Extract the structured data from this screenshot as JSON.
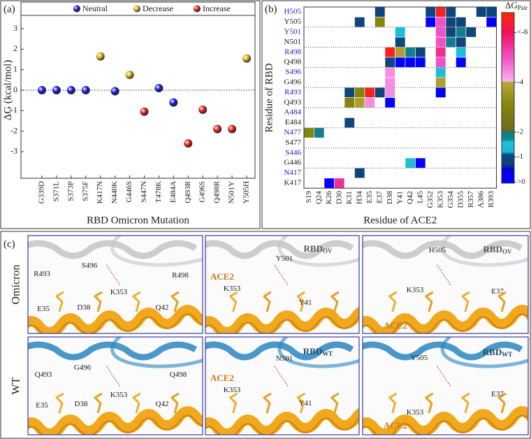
{
  "chart_data": [
    {
      "type": "scatter",
      "panel_label": "(a)",
      "ylabel": "ΔG (kcal/mol)",
      "xlabel": "RBD Omicron Mutation",
      "categories": [
        "G339D",
        "S371L",
        "S373P",
        "S375F",
        "K417N",
        "N440K",
        "G446S",
        "S447N",
        "T478K",
        "E484A",
        "Q493R",
        "G496S",
        "Q498R",
        "N501Y",
        "Y505H"
      ],
      "series": [
        {
          "name": "Neutral",
          "color": "#1c1cd6",
          "values": [
            0,
            0,
            0,
            0,
            null,
            -0.05,
            null,
            null,
            0.1,
            -0.6,
            null,
            null,
            null,
            null,
            null
          ]
        },
        {
          "name": "Decrease",
          "color": "#d6b21e",
          "values": [
            null,
            null,
            null,
            null,
            1.65,
            null,
            0.75,
            null,
            null,
            null,
            null,
            null,
            null,
            null,
            1.55
          ]
        },
        {
          "name": "Increase",
          "color": "#e3211c",
          "values": [
            null,
            null,
            null,
            null,
            null,
            null,
            null,
            -1.05,
            null,
            null,
            -2.6,
            -0.95,
            -1.9,
            -1.9,
            null
          ]
        }
      ],
      "ylim": [
        -4.3,
        4.3
      ],
      "yticks": [
        -3,
        -2,
        -1,
        0,
        1,
        2,
        3
      ],
      "zero_line": true
    },
    {
      "type": "heatmap",
      "panel_label": "(b)",
      "xlabel": "Residue of ACE2",
      "ylabel": "Residue of RBD",
      "columns": [
        "S19",
        "Q24",
        "K26",
        "D30",
        "K31",
        "H34",
        "E35",
        "E37",
        "D38",
        "Y41",
        "Q42",
        "L45",
        "G352",
        "K353",
        "G354",
        "D355",
        "R357",
        "A386",
        "R393"
      ],
      "rows": [
        "H505",
        "Y505",
        "Y501",
        "N501",
        "R498",
        "Q498",
        "S496",
        "G496",
        "R493",
        "Q493",
        "A484",
        "E484",
        "N477",
        "S477",
        "S446",
        "G446",
        "N417",
        "K417"
      ],
      "row_colors": [
        "#1a1acc",
        "#1a1a1a",
        "#1a1acc",
        "#1a1a1a",
        "#1a1acc",
        "#1a1a1a",
        "#1a1acc",
        "#1a1a1a",
        "#1a1acc",
        "#1a1a1a",
        "#1a1acc",
        "#1a1a1a",
        "#1a1acc",
        "#1a1a1a",
        "#1a1acc",
        "#1a1a1a",
        "#1a1acc",
        "#1a1a1a"
      ],
      "values": [
        [
          null,
          null,
          null,
          null,
          null,
          null,
          null,
          -0.9,
          null,
          null,
          null,
          null,
          -0.9,
          -6.5,
          -0.9,
          null,
          null,
          -0.9,
          -0.9
        ],
        [
          null,
          null,
          null,
          null,
          null,
          -0.9,
          null,
          -3,
          null,
          null,
          null,
          null,
          0.2,
          -5,
          -0.9,
          -0.9,
          null,
          null,
          0.2
        ],
        [
          null,
          null,
          null,
          null,
          null,
          null,
          null,
          null,
          null,
          -1.5,
          null,
          null,
          null,
          -5,
          -0.9,
          -1.9,
          -0.9,
          null,
          null
        ],
        [
          null,
          null,
          null,
          null,
          null,
          null,
          null,
          null,
          null,
          -0.9,
          null,
          null,
          null,
          -5,
          -1.9,
          -0.9,
          null,
          null,
          null
        ],
        [
          null,
          null,
          null,
          null,
          null,
          null,
          null,
          null,
          -6.5,
          -3.8,
          -1.9,
          -0.9,
          null,
          -5.5,
          null,
          -1.5,
          null,
          null,
          null
        ],
        [
          null,
          null,
          null,
          null,
          null,
          null,
          null,
          null,
          -0.9,
          0.2,
          0.2,
          0.2,
          null,
          -5,
          null,
          0.2,
          null,
          null,
          null
        ],
        [
          null,
          null,
          null,
          null,
          null,
          null,
          null,
          null,
          -4.4,
          null,
          null,
          null,
          null,
          -1.5,
          null,
          null,
          null,
          null,
          null
        ],
        [
          null,
          null,
          null,
          null,
          null,
          null,
          null,
          null,
          -4.4,
          null,
          null,
          null,
          null,
          -3.8,
          null,
          null,
          null,
          null,
          null
        ],
        [
          null,
          null,
          null,
          null,
          -0.9,
          -3,
          -6.5,
          -0.9,
          -4.4,
          null,
          null,
          null,
          null,
          0.2,
          null,
          null,
          null,
          null,
          null
        ],
        [
          null,
          null,
          null,
          null,
          -3,
          -3.8,
          -4.4,
          null,
          0.2,
          null,
          null,
          null,
          null,
          null,
          null,
          null,
          null,
          null,
          null
        ],
        [
          null,
          null,
          null,
          null,
          null,
          null,
          null,
          null,
          null,
          null,
          null,
          null,
          null,
          null,
          null,
          null,
          null,
          null,
          null
        ],
        [
          null,
          null,
          null,
          null,
          -0.9,
          null,
          null,
          null,
          null,
          null,
          null,
          null,
          null,
          null,
          null,
          null,
          null,
          null,
          null
        ],
        [
          -3,
          -1.9,
          null,
          null,
          null,
          null,
          null,
          null,
          null,
          null,
          null,
          null,
          null,
          null,
          null,
          null,
          null,
          null,
          null
        ],
        [
          null,
          null,
          null,
          null,
          null,
          null,
          null,
          null,
          null,
          null,
          null,
          null,
          null,
          null,
          null,
          null,
          null,
          null,
          null
        ],
        [
          null,
          null,
          null,
          null,
          null,
          null,
          null,
          null,
          null,
          null,
          null,
          null,
          null,
          null,
          null,
          null,
          null,
          null,
          null
        ],
        [
          null,
          null,
          null,
          null,
          null,
          null,
          null,
          null,
          null,
          null,
          -1.5,
          0.2,
          null,
          null,
          null,
          null,
          null,
          null,
          null
        ],
        [
          null,
          null,
          null,
          null,
          null,
          -0.9,
          null,
          null,
          null,
          null,
          null,
          null,
          null,
          null,
          null,
          null,
          null,
          null,
          null
        ],
        [
          null,
          null,
          0.2,
          -5.5,
          null,
          null,
          null,
          null,
          null,
          null,
          null,
          null,
          null,
          null,
          null,
          null,
          null,
          null,
          null
        ]
      ],
      "colorbar": {
        "title": "ΔG",
        "title_sub": "Pair",
        "zlim": [
          0.05,
          -6.8
        ],
        "ticks": [
          {
            "value": 0,
            "label": ">0"
          },
          -1,
          -2,
          -4,
          {
            "value": -6,
            "label": "<-6"
          }
        ],
        "colorscale": [
          {
            "value": 0.05,
            "color": "#0000ff"
          },
          {
            "value": -0.5,
            "color": "#0000dd"
          },
          {
            "value": -0.7,
            "color": "#0d3f78"
          },
          {
            "value": -1.1,
            "color": "#0d4a80"
          },
          {
            "value": -1.2,
            "color": "#19b5d5"
          },
          {
            "value": -1.6,
            "color": "#20c0d8"
          },
          {
            "value": -1.7,
            "color": "#0f8a9a"
          },
          {
            "value": -2.0,
            "color": "#127a86"
          },
          {
            "value": -2.05,
            "color": "#6a6a18"
          },
          {
            "value": -3.2,
            "color": "#8a8a10"
          },
          {
            "value": -4.0,
            "color": "#b8a838"
          },
          {
            "value": -4.05,
            "color": "#f8b0f0"
          },
          {
            "value": -5.0,
            "color": "#f050c8"
          },
          {
            "value": -6.0,
            "color": "#f0105a"
          },
          {
            "value": -6.8,
            "color": "#ff2a00"
          }
        ]
      }
    }
  ],
  "panel_c": {
    "label": "(c)",
    "rows": [
      {
        "name": "Omicron",
        "boxes": [
          {
            "labels": [
              {
                "text": "R493"
              },
              {
                "text": "S496"
              },
              {
                "text": "R498"
              },
              {
                "text": "E35"
              },
              {
                "text": "D38"
              },
              {
                "text": "K353"
              },
              {
                "text": "Q42"
              }
            ]
          },
          {
            "labels": [
              {
                "text": "RBD",
                "sub": "OV",
                "bold": true,
                "color": "#555555"
              },
              {
                "text": "Y501"
              },
              {
                "text": "ACE2",
                "bold": true,
                "color": "#c77a1a"
              },
              {
                "text": "K353"
              },
              {
                "text": "Y41"
              }
            ]
          },
          {
            "labels": [
              {
                "text": "H505"
              },
              {
                "text": "RBD",
                "sub": "OV",
                "bold": true,
                "color": "#555555"
              },
              {
                "text": "K353"
              },
              {
                "text": "E37"
              },
              {
                "text": "ACE2",
                "bold": true,
                "color": "#c77a1a"
              }
            ]
          }
        ]
      },
      {
        "name": "WT",
        "boxes": [
          {
            "labels": [
              {
                "text": "Q493"
              },
              {
                "text": "G496"
              },
              {
                "text": "Q498"
              },
              {
                "text": "E35"
              },
              {
                "text": "D38"
              },
              {
                "text": "K353"
              },
              {
                "text": "Q42"
              }
            ]
          },
          {
            "labels": [
              {
                "text": "RBD",
                "sub": "WT",
                "bold": true,
                "color": "#1a4a70"
              },
              {
                "text": "N501"
              },
              {
                "text": "ACE2",
                "bold": true,
                "color": "#c77a1a"
              },
              {
                "text": "K353"
              },
              {
                "text": "Y41"
              }
            ]
          },
          {
            "labels": [
              {
                "text": "Y505"
              },
              {
                "text": "RBD",
                "sub": "WT",
                "bold": true,
                "color": "#1a4a70"
              },
              {
                "text": "ACE2",
                "bold": true,
                "color": "#c77a1a"
              },
              {
                "text": "K353"
              },
              {
                "text": "E37"
              }
            ]
          }
        ]
      }
    ]
  }
}
